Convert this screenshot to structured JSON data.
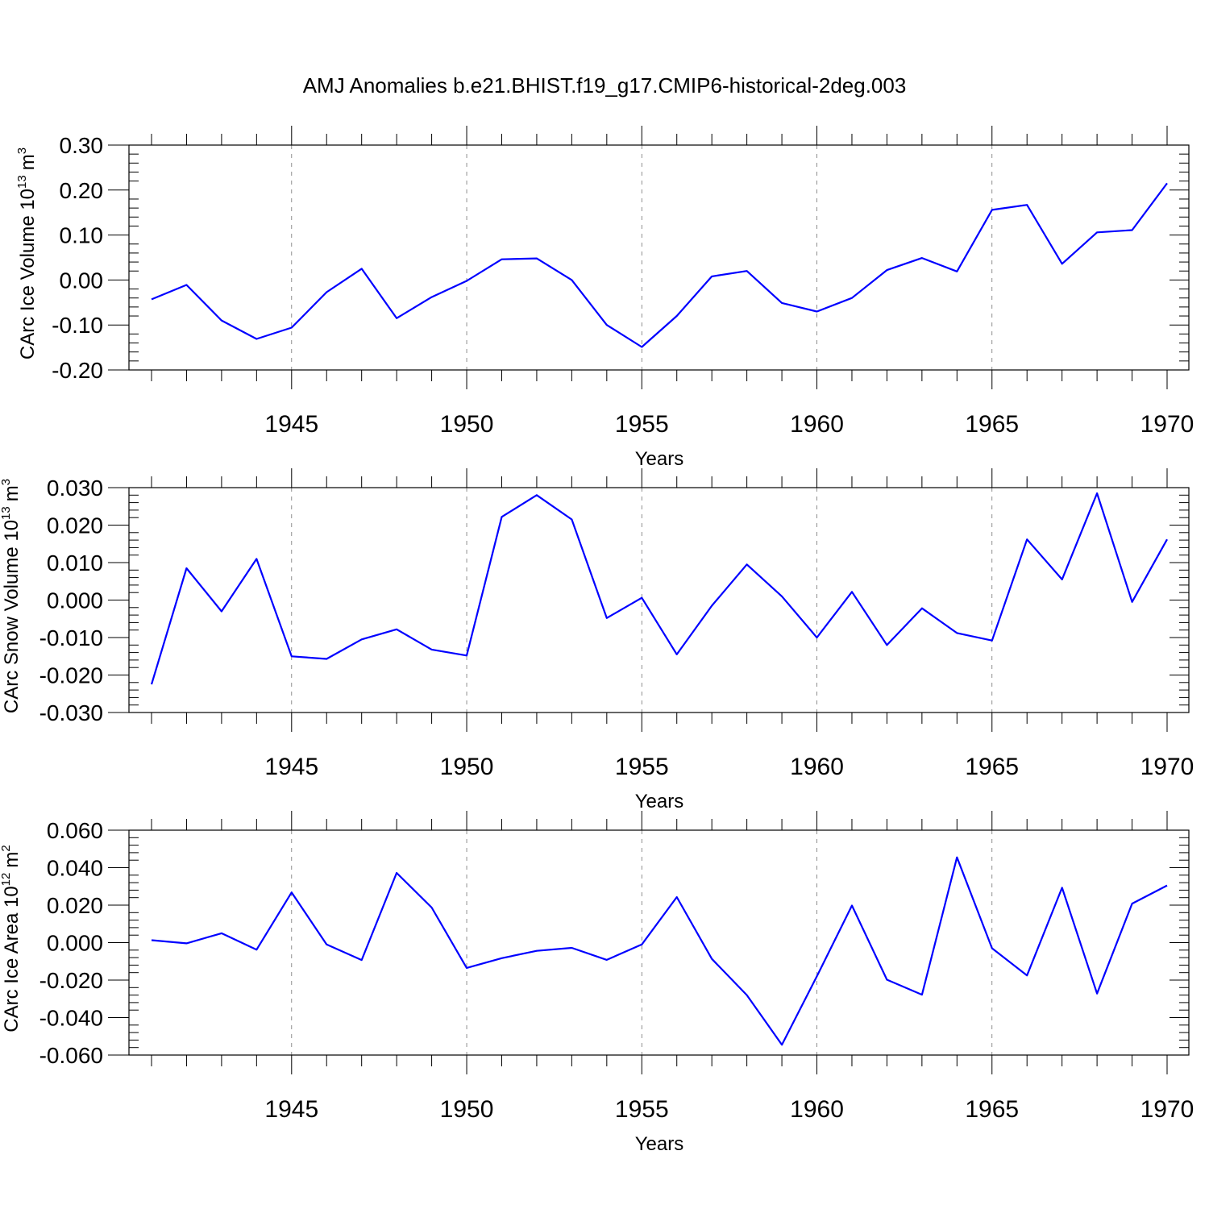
{
  "title": "AMJ Anomalies b.e21.BHIST.f19_g17.CMIP6-historical-2deg.003",
  "chart_data": [
    {
      "type": "line",
      "title": "AMJ Anomalies b.e21.BHIST.f19_g17.CMIP6-historical-2deg.003",
      "ylabel_main": "CArc Ice Volume 10",
      "ylabel_exp": "13",
      "ylabel_unit": "m",
      "ylabel_unit_exp": "3",
      "xlabel": "Years",
      "xlim": [
        1941,
        1970
      ],
      "ylim": [
        -0.2,
        0.3
      ],
      "yticks": [
        -0.2,
        -0.1,
        0.0,
        0.1,
        0.2,
        0.3
      ],
      "ytick_labels": [
        "-0.20",
        "-0.10",
        "0.00",
        "0.10",
        "0.20",
        "0.30"
      ],
      "xticks": [
        1945,
        1950,
        1955,
        1960,
        1965,
        1970
      ],
      "xtick_labels": [
        "1945",
        "1950",
        "1955",
        "1960",
        "1965",
        "1970"
      ],
      "grid_x": true,
      "color": "#0000ff",
      "x": [
        1941,
        1942,
        1943,
        1944,
        1945,
        1946,
        1947,
        1948,
        1949,
        1950,
        1951,
        1952,
        1953,
        1954,
        1955,
        1956,
        1957,
        1958,
        1959,
        1960,
        1961,
        1962,
        1963,
        1964,
        1965,
        1966,
        1967,
        1968,
        1969,
        1970
      ],
      "values": [
        -0.043,
        -0.011,
        -0.09,
        -0.131,
        -0.106,
        -0.027,
        0.025,
        -0.085,
        -0.038,
        -0.002,
        0.046,
        0.048,
        0.0,
        -0.1,
        -0.149,
        -0.08,
        0.008,
        0.02,
        -0.051,
        -0.07,
        -0.04,
        0.022,
        0.049,
        0.019,
        0.156,
        0.167,
        0.036,
        0.106,
        0.111,
        0.215
      ]
    },
    {
      "type": "line",
      "ylabel_main": "CArc Snow Volume 10",
      "ylabel_exp": "13",
      "ylabel_unit": "m",
      "ylabel_unit_exp": "3",
      "xlabel": "Years",
      "xlim": [
        1941,
        1970
      ],
      "ylim": [
        -0.03,
        0.03
      ],
      "yticks": [
        -0.03,
        -0.02,
        -0.01,
        0.0,
        0.01,
        0.02,
        0.03
      ],
      "ytick_labels": [
        "-0.030",
        "-0.020",
        "-0.010",
        "0.000",
        "0.010",
        "0.020",
        "0.030"
      ],
      "xticks": [
        1945,
        1950,
        1955,
        1960,
        1965,
        1970
      ],
      "xtick_labels": [
        "1945",
        "1950",
        "1955",
        "1960",
        "1965",
        "1970"
      ],
      "grid_x": true,
      "color": "#0000ff",
      "x": [
        1941,
        1942,
        1943,
        1944,
        1945,
        1946,
        1947,
        1948,
        1949,
        1950,
        1951,
        1952,
        1953,
        1954,
        1955,
        1956,
        1957,
        1958,
        1959,
        1960,
        1961,
        1962,
        1963,
        1964,
        1965,
        1966,
        1967,
        1968,
        1969,
        1970
      ],
      "values": [
        -0.0225,
        0.0085,
        -0.003,
        0.011,
        -0.015,
        -0.0157,
        -0.0105,
        -0.0078,
        -0.0132,
        -0.0148,
        0.0222,
        0.028,
        0.0215,
        -0.0048,
        0.0006,
        -0.0145,
        -0.0015,
        0.0095,
        0.001,
        -0.01,
        0.0022,
        -0.012,
        -0.0022,
        -0.0088,
        -0.0108,
        0.0162,
        0.0055,
        0.0285,
        -0.0005,
        0.0162
      ]
    },
    {
      "type": "line",
      "ylabel_main": "CArc Ice Area 10",
      "ylabel_exp": "12",
      "ylabel_unit": "m",
      "ylabel_unit_exp": "2",
      "xlabel": "Years",
      "xlim": [
        1941,
        1970
      ],
      "ylim": [
        -0.06,
        0.06
      ],
      "yticks": [
        -0.06,
        -0.04,
        -0.02,
        0.0,
        0.02,
        0.04,
        0.06
      ],
      "ytick_labels": [
        "-0.060",
        "-0.040",
        "-0.020",
        "0.000",
        "0.020",
        "0.040",
        "0.060"
      ],
      "xticks": [
        1945,
        1950,
        1955,
        1960,
        1965,
        1970
      ],
      "xtick_labels": [
        "1945",
        "1950",
        "1955",
        "1960",
        "1965",
        "1970"
      ],
      "grid_x": true,
      "color": "#0000ff",
      "x": [
        1941,
        1942,
        1943,
        1944,
        1945,
        1946,
        1947,
        1948,
        1949,
        1950,
        1951,
        1952,
        1953,
        1954,
        1955,
        1956,
        1957,
        1958,
        1959,
        1960,
        1961,
        1962,
        1963,
        1964,
        1965,
        1966,
        1967,
        1968,
        1969,
        1970
      ],
      "values": [
        0.0013,
        -0.0004,
        0.005,
        -0.0038,
        0.0268,
        -0.001,
        -0.0093,
        0.0372,
        0.0187,
        -0.0135,
        -0.0083,
        -0.0044,
        -0.0028,
        -0.0092,
        -0.001,
        0.0243,
        -0.0087,
        -0.028,
        -0.0545,
        -0.018,
        0.0198,
        -0.0198,
        -0.0278,
        0.0455,
        -0.003,
        -0.0175,
        0.0293,
        -0.0272,
        0.0208,
        0.0305
      ]
    }
  ]
}
